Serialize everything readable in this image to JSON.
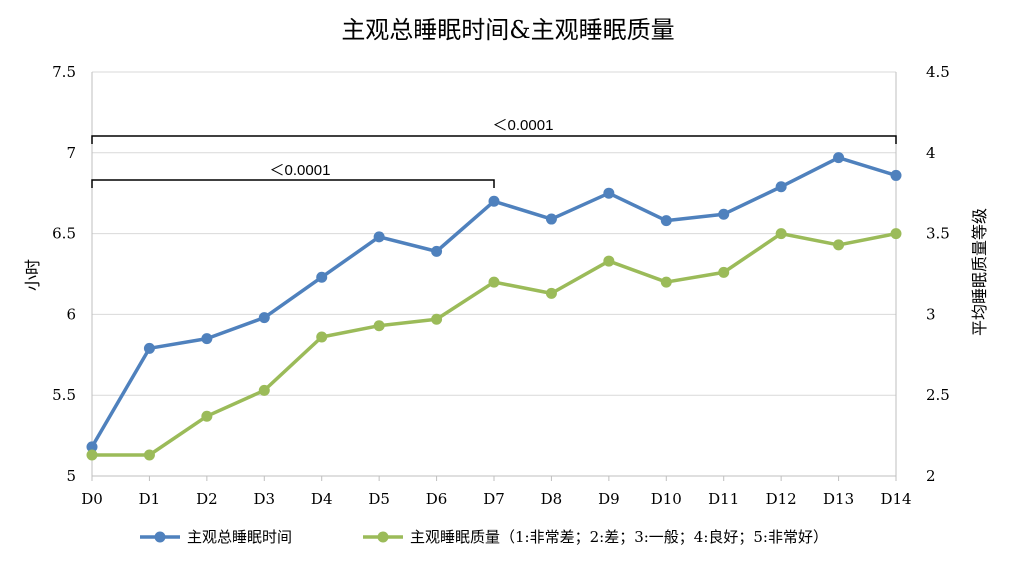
{
  "chart_data": {
    "type": "line",
    "title": "主观总睡眠时间&主观睡眠质量",
    "categories": [
      "D0",
      "D1",
      "D2",
      "D3",
      "D4",
      "D5",
      "D6",
      "D7",
      "D8",
      "D9",
      "D10",
      "D11",
      "D12",
      "D13",
      "D14"
    ],
    "y_left": {
      "label": "小时",
      "range": [
        5,
        7.5
      ],
      "ticks": [
        "5",
        "5.5",
        "6",
        "6.5",
        "7",
        "7.5"
      ]
    },
    "y_right": {
      "label": "平均睡眠质量等级",
      "range": [
        2,
        4.5
      ],
      "ticks": [
        "2",
        "2.5",
        "3",
        "3.5",
        "4",
        "4.5"
      ]
    },
    "grid": true,
    "legend_position": "bottom",
    "series": [
      {
        "name": "主观总睡眠时间",
        "axis": "left",
        "color": "#4F81BD",
        "values": [
          5.18,
          5.79,
          5.85,
          5.98,
          6.23,
          6.48,
          6.39,
          6.7,
          6.59,
          6.75,
          6.58,
          6.62,
          6.79,
          6.97,
          6.86
        ]
      },
      {
        "name": "主观睡眠质量（1:非常差；2:差；3:一般；4:良好；5:非常好）",
        "axis": "right",
        "color": "#9BBB59",
        "values": [
          2.13,
          2.13,
          2.37,
          2.53,
          2.86,
          2.93,
          2.97,
          3.2,
          3.13,
          3.33,
          3.2,
          3.26,
          3.5,
          3.43,
          3.5
        ]
      }
    ],
    "annotations": [
      {
        "text": "＜0.0001",
        "from": "D0",
        "to": "D14"
      },
      {
        "text": "＜0.0001",
        "from": "D0",
        "to": "D7"
      }
    ]
  }
}
